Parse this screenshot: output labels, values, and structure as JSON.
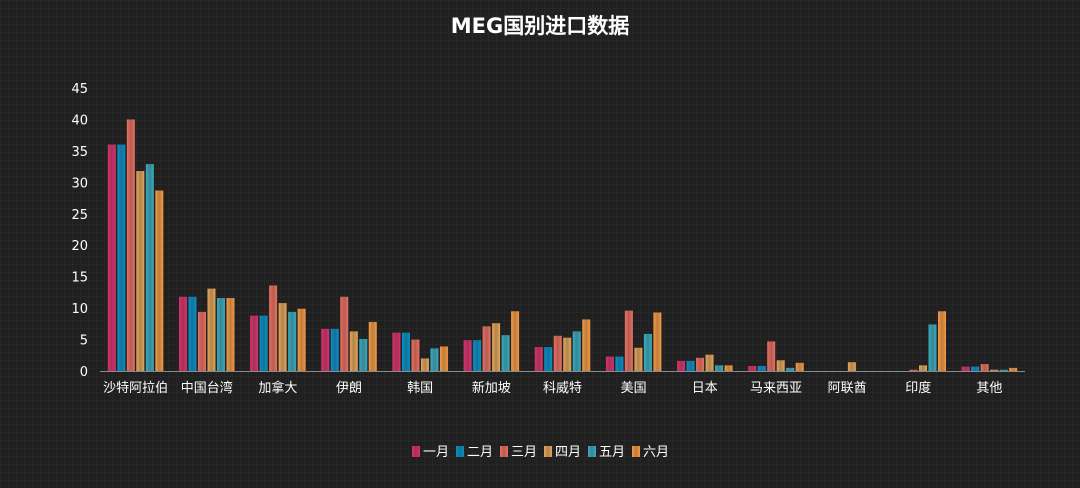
{
  "chart_data": {
    "type": "bar",
    "title": "MEG国别进口数据",
    "xlabel": "",
    "ylabel": "",
    "ylim": [
      0,
      45
    ],
    "yticks": [
      0,
      5,
      10,
      15,
      20,
      25,
      30,
      35,
      40,
      45
    ],
    "grid": true,
    "legend_position": "bottom",
    "categories": [
      "沙特阿拉伯",
      "中国台湾",
      "加拿大",
      "伊朗",
      "韩国",
      "新加坡",
      "科威特",
      "美国",
      "日本",
      "马来西亚",
      "阿联酋",
      "印度",
      "其他"
    ],
    "series": [
      {
        "name": "一月",
        "color": "#d6336c",
        "values": [
          36,
          11.8,
          8.8,
          6.7,
          6.1,
          4.9,
          3.8,
          2.3,
          1.6,
          0.8,
          0,
          0,
          0.7
        ]
      },
      {
        "name": "二月",
        "color": "#0a8fc4",
        "values": [
          36,
          11.8,
          8.8,
          6.7,
          6.1,
          4.9,
          3.8,
          2.3,
          1.6,
          0.8,
          0,
          0,
          0.7
        ]
      },
      {
        "name": "三月",
        "color": "#e87061",
        "values": [
          40,
          9.4,
          13.6,
          11.8,
          5.0,
          7.1,
          5.6,
          9.6,
          2.1,
          4.7,
          0,
          0.2,
          1.1
        ]
      },
      {
        "name": "四月",
        "color": "#e3a55a",
        "values": [
          31.8,
          13.1,
          10.8,
          6.3,
          2.0,
          7.6,
          5.3,
          3.7,
          2.6,
          1.7,
          1.4,
          0.9,
          0.2
        ]
      },
      {
        "name": "五月",
        "color": "#3aaabd",
        "values": [
          32.9,
          11.6,
          9.4,
          5.1,
          3.6,
          5.7,
          6.3,
          5.9,
          0.9,
          0.5,
          0,
          7.4,
          0.2
        ]
      },
      {
        "name": "六月",
        "color": "#f39a45",
        "values": [
          28.7,
          11.6,
          9.9,
          7.8,
          3.9,
          9.5,
          8.2,
          9.3,
          0.9,
          1.3,
          0,
          9.5,
          0.5
        ]
      }
    ]
  }
}
